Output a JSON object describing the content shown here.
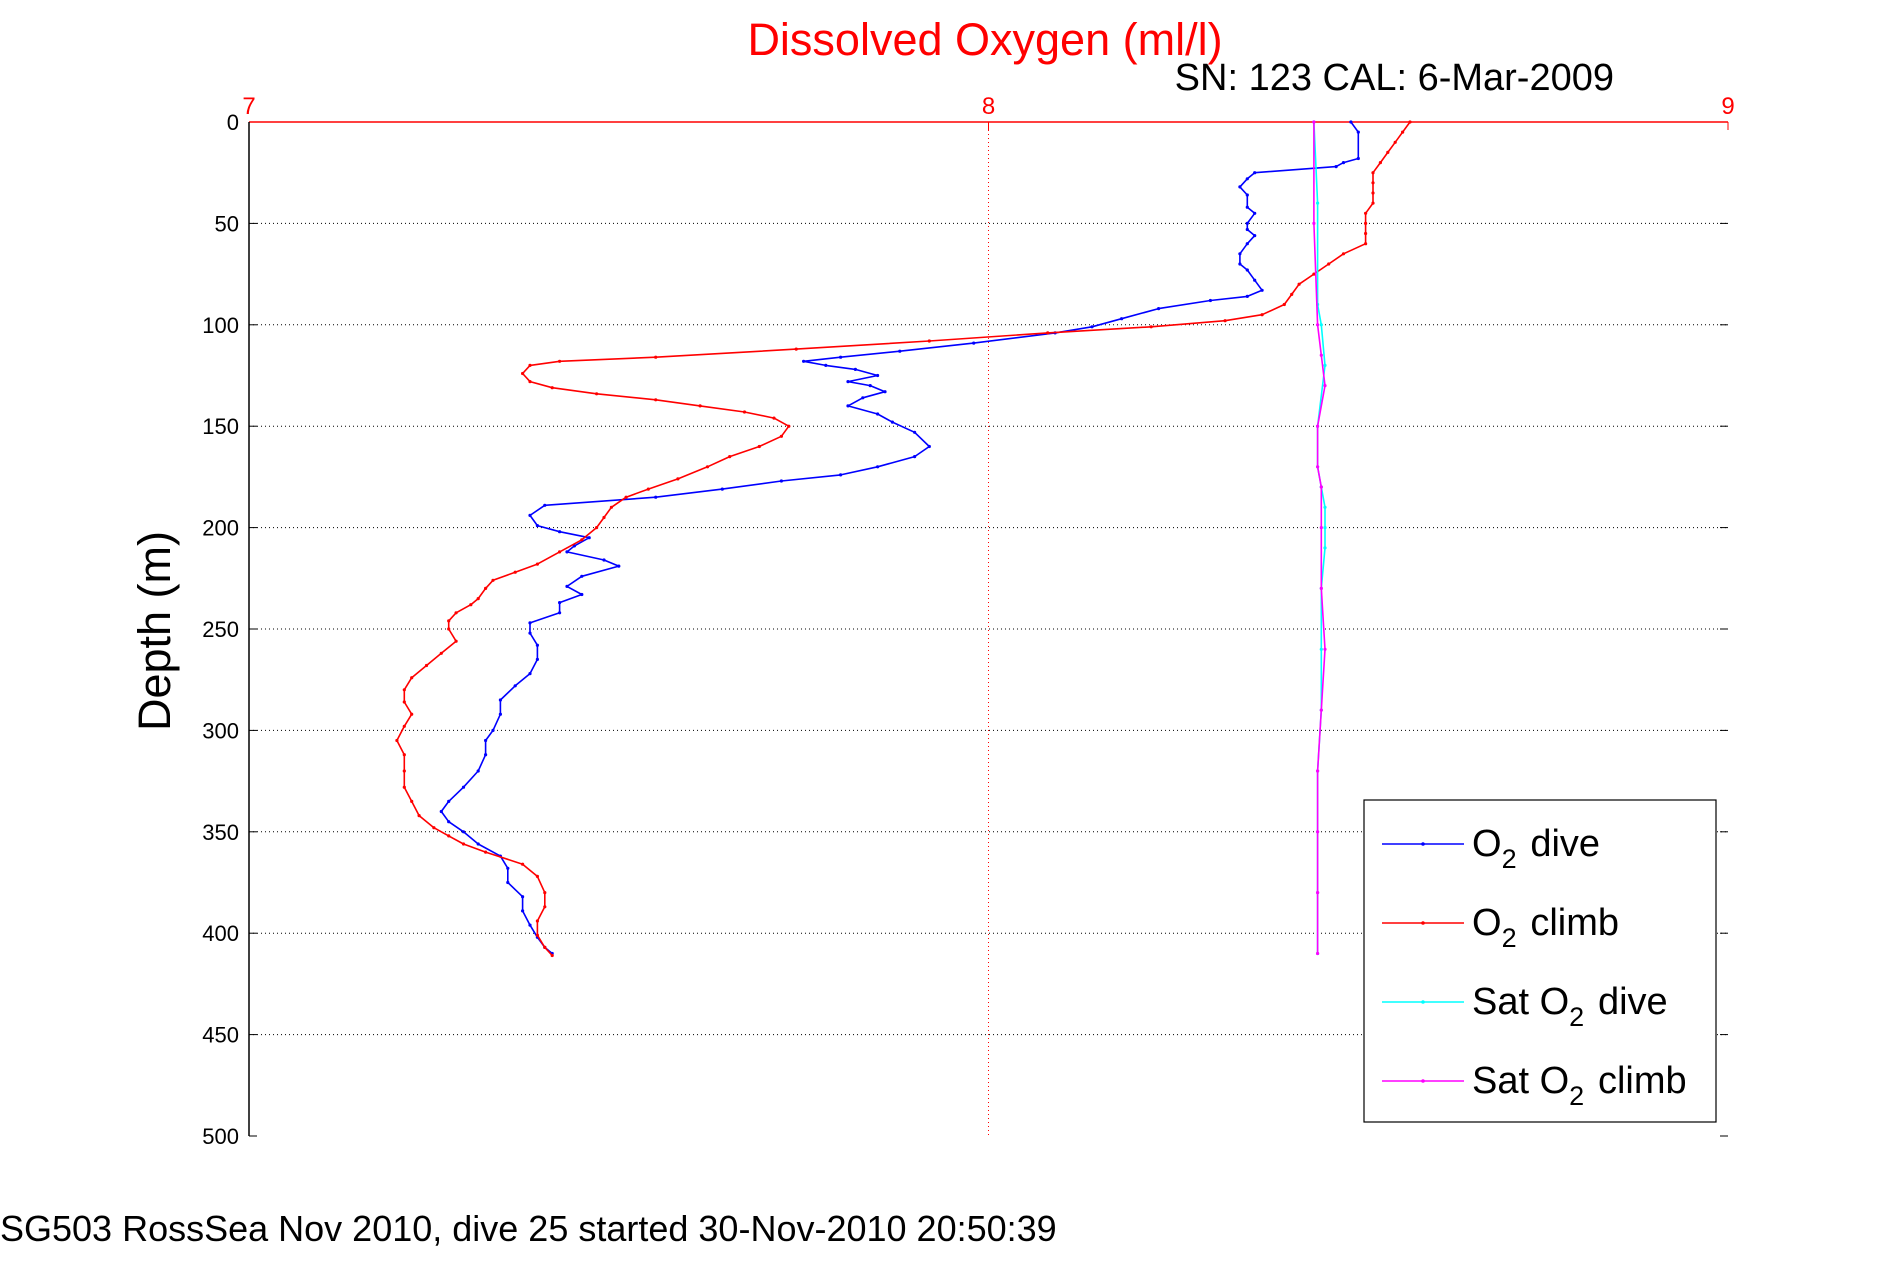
{
  "chart_data": {
    "type": "line",
    "title": "Dissolved Oxygen (ml/l)",
    "subtitle": "SN: 123  CAL: 6-Mar-2009",
    "xlabel": "",
    "ylabel": "Depth (m)",
    "xlim": [
      7,
      9
    ],
    "ylim": [
      0,
      500
    ],
    "y_reversed": true,
    "x_axis_location": "top",
    "x_ticks": [
      7,
      8,
      9
    ],
    "y_ticks": [
      0,
      50,
      100,
      150,
      200,
      250,
      300,
      350,
      400,
      450,
      500
    ],
    "grid": true,
    "legend_position": "bottom-right",
    "series": [
      {
        "name": "O2 dive",
        "color": "#0000ff",
        "points": [
          [
            8.49,
            0
          ],
          [
            8.5,
            5
          ],
          [
            8.5,
            18
          ],
          [
            8.48,
            20
          ],
          [
            8.47,
            22
          ],
          [
            8.36,
            25
          ],
          [
            8.35,
            28
          ],
          [
            8.34,
            32
          ],
          [
            8.35,
            36
          ],
          [
            8.35,
            42
          ],
          [
            8.36,
            45
          ],
          [
            8.35,
            50
          ],
          [
            8.35,
            53
          ],
          [
            8.36,
            56
          ],
          [
            8.35,
            60
          ],
          [
            8.34,
            65
          ],
          [
            8.34,
            70
          ],
          [
            8.35,
            73
          ],
          [
            8.36,
            78
          ],
          [
            8.37,
            83
          ],
          [
            8.35,
            86
          ],
          [
            8.3,
            88
          ],
          [
            8.23,
            92
          ],
          [
            8.18,
            97
          ],
          [
            8.14,
            101
          ],
          [
            8.09,
            104
          ],
          [
            7.98,
            109
          ],
          [
            7.88,
            113
          ],
          [
            7.8,
            116
          ],
          [
            7.75,
            118
          ],
          [
            7.78,
            120
          ],
          [
            7.82,
            122
          ],
          [
            7.85,
            125
          ],
          [
            7.81,
            128
          ],
          [
            7.84,
            130
          ],
          [
            7.86,
            133
          ],
          [
            7.83,
            136
          ],
          [
            7.81,
            140
          ],
          [
            7.85,
            144
          ],
          [
            7.87,
            148
          ],
          [
            7.9,
            153
          ],
          [
            7.92,
            160
          ],
          [
            7.9,
            165
          ],
          [
            7.85,
            170
          ],
          [
            7.8,
            174
          ],
          [
            7.72,
            177
          ],
          [
            7.64,
            181
          ],
          [
            7.55,
            185
          ],
          [
            7.4,
            189
          ],
          [
            7.38,
            194
          ],
          [
            7.39,
            199
          ],
          [
            7.42,
            202
          ],
          [
            7.46,
            205
          ],
          [
            7.44,
            209
          ],
          [
            7.43,
            212
          ],
          [
            7.48,
            216
          ],
          [
            7.5,
            219
          ],
          [
            7.45,
            224
          ],
          [
            7.43,
            229
          ],
          [
            7.45,
            233
          ],
          [
            7.42,
            237
          ],
          [
            7.42,
            242
          ],
          [
            7.38,
            247
          ],
          [
            7.38,
            252
          ],
          [
            7.39,
            258
          ],
          [
            7.39,
            265
          ],
          [
            7.38,
            272
          ],
          [
            7.36,
            278
          ],
          [
            7.34,
            285
          ],
          [
            7.34,
            292
          ],
          [
            7.33,
            300
          ],
          [
            7.32,
            305
          ],
          [
            7.32,
            312
          ],
          [
            7.31,
            320
          ],
          [
            7.29,
            328
          ],
          [
            7.27,
            335
          ],
          [
            7.26,
            340
          ],
          [
            7.27,
            345
          ],
          [
            7.29,
            350
          ],
          [
            7.31,
            356
          ],
          [
            7.34,
            362
          ],
          [
            7.35,
            368
          ],
          [
            7.35,
            375
          ],
          [
            7.37,
            382
          ],
          [
            7.37,
            389
          ],
          [
            7.38,
            396
          ],
          [
            7.39,
            402
          ],
          [
            7.4,
            407
          ],
          [
            7.41,
            410
          ]
        ]
      },
      {
        "name": "O2 climb",
        "color": "#ff0000",
        "points": [
          [
            8.57,
            0
          ],
          [
            8.56,
            5
          ],
          [
            8.55,
            10
          ],
          [
            8.54,
            15
          ],
          [
            8.53,
            20
          ],
          [
            8.52,
            25
          ],
          [
            8.52,
            30
          ],
          [
            8.52,
            35
          ],
          [
            8.52,
            40
          ],
          [
            8.51,
            45
          ],
          [
            8.51,
            50
          ],
          [
            8.51,
            55
          ],
          [
            8.51,
            60
          ],
          [
            8.48,
            65
          ],
          [
            8.46,
            70
          ],
          [
            8.44,
            75
          ],
          [
            8.42,
            80
          ],
          [
            8.41,
            85
          ],
          [
            8.4,
            90
          ],
          [
            8.37,
            95
          ],
          [
            8.32,
            98
          ],
          [
            8.22,
            101
          ],
          [
            8.08,
            104
          ],
          [
            7.92,
            108
          ],
          [
            7.74,
            112
          ],
          [
            7.55,
            116
          ],
          [
            7.42,
            118
          ],
          [
            7.38,
            120
          ],
          [
            7.37,
            124
          ],
          [
            7.38,
            128
          ],
          [
            7.41,
            131
          ],
          [
            7.47,
            134
          ],
          [
            7.55,
            137
          ],
          [
            7.61,
            140
          ],
          [
            7.67,
            143
          ],
          [
            7.71,
            146
          ],
          [
            7.73,
            150
          ],
          [
            7.72,
            155
          ],
          [
            7.69,
            160
          ],
          [
            7.65,
            165
          ],
          [
            7.62,
            170
          ],
          [
            7.58,
            176
          ],
          [
            7.54,
            181
          ],
          [
            7.51,
            185
          ],
          [
            7.49,
            190
          ],
          [
            7.48,
            195
          ],
          [
            7.47,
            200
          ],
          [
            7.45,
            206
          ],
          [
            7.42,
            212
          ],
          [
            7.39,
            218
          ],
          [
            7.36,
            222
          ],
          [
            7.33,
            226
          ],
          [
            7.32,
            230
          ],
          [
            7.31,
            235
          ],
          [
            7.3,
            238
          ],
          [
            7.28,
            242
          ],
          [
            7.27,
            246
          ],
          [
            7.27,
            250
          ],
          [
            7.28,
            256
          ],
          [
            7.26,
            262
          ],
          [
            7.24,
            268
          ],
          [
            7.22,
            274
          ],
          [
            7.21,
            280
          ],
          [
            7.21,
            286
          ],
          [
            7.22,
            292
          ],
          [
            7.21,
            298
          ],
          [
            7.2,
            305
          ],
          [
            7.21,
            312
          ],
          [
            7.21,
            320
          ],
          [
            7.21,
            328
          ],
          [
            7.22,
            335
          ],
          [
            7.23,
            342
          ],
          [
            7.25,
            348
          ],
          [
            7.27,
            352
          ],
          [
            7.29,
            356
          ],
          [
            7.32,
            360
          ],
          [
            7.37,
            366
          ],
          [
            7.39,
            372
          ],
          [
            7.4,
            380
          ],
          [
            7.4,
            387
          ],
          [
            7.39,
            394
          ],
          [
            7.39,
            401
          ],
          [
            7.4,
            407
          ],
          [
            7.41,
            411
          ]
        ]
      },
      {
        "name": "Sat O2 dive",
        "color": "#00ffff",
        "points": [
          [
            8.44,
            0
          ],
          [
            8.445,
            40
          ],
          [
            8.445,
            90
          ],
          [
            8.45,
            100
          ],
          [
            8.455,
            120
          ],
          [
            8.445,
            150
          ],
          [
            8.445,
            170
          ],
          [
            8.45,
            180
          ],
          [
            8.455,
            190
          ],
          [
            8.455,
            200
          ],
          [
            8.455,
            210
          ],
          [
            8.45,
            230
          ],
          [
            8.45,
            260
          ],
          [
            8.45,
            290
          ],
          [
            8.445,
            320
          ],
          [
            8.445,
            350
          ],
          [
            8.445,
            380
          ],
          [
            8.445,
            410
          ]
        ]
      },
      {
        "name": "Sat O2 climb",
        "color": "#ff00ff",
        "points": [
          [
            8.44,
            0
          ],
          [
            8.44,
            50
          ],
          [
            8.445,
            100
          ],
          [
            8.45,
            115
          ],
          [
            8.455,
            130
          ],
          [
            8.445,
            150
          ],
          [
            8.445,
            170
          ],
          [
            8.45,
            180
          ],
          [
            8.45,
            200
          ],
          [
            8.45,
            230
          ],
          [
            8.455,
            260
          ],
          [
            8.45,
            290
          ],
          [
            8.445,
            320
          ],
          [
            8.445,
            350
          ],
          [
            8.445,
            380
          ],
          [
            8.445,
            410
          ]
        ]
      }
    ],
    "footer": "SG503 RossSea Nov 2010, dive 25 started 30-Nov-2010 20:50:39"
  },
  "colors": {
    "title": "#ff0000",
    "x_tick_labels": "#ff0000",
    "axes": "#000000",
    "x_grid": "#ff0000",
    "y_grid": "#000000"
  }
}
